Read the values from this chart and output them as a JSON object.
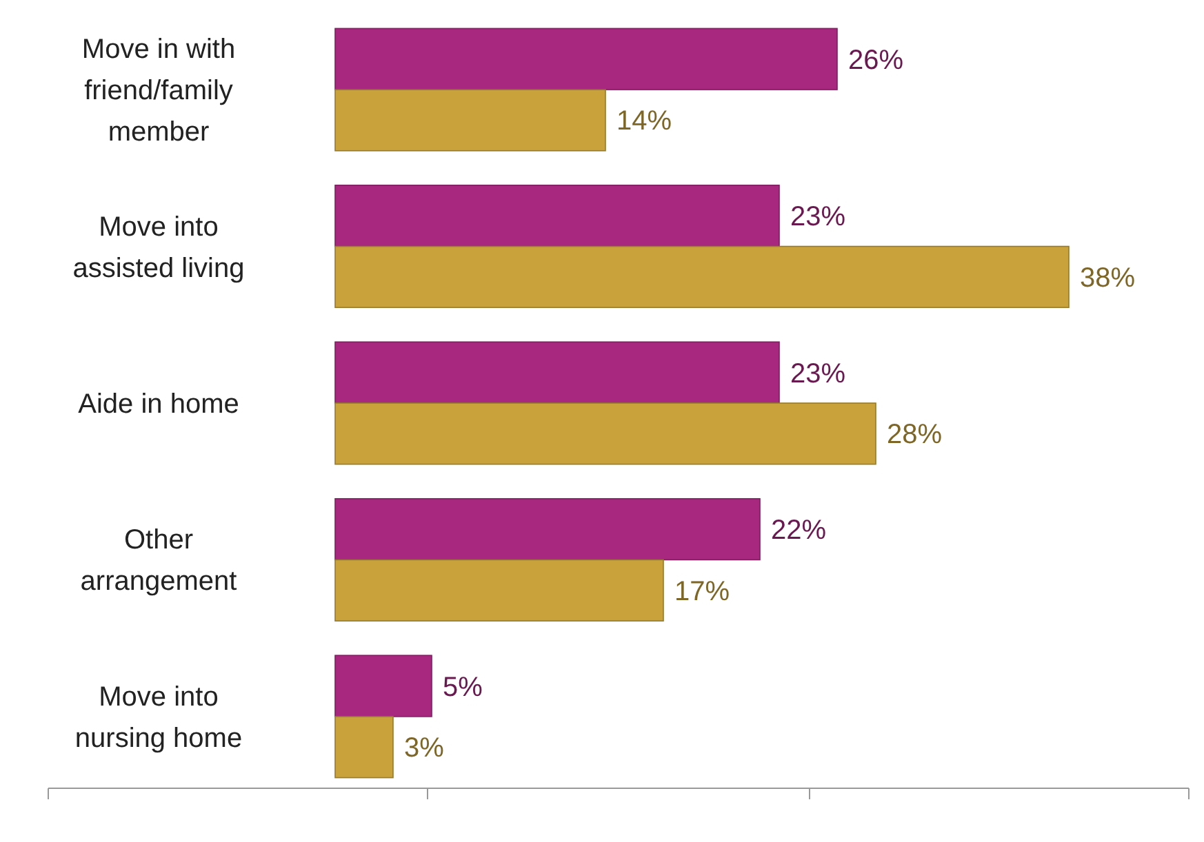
{
  "chart_data": {
    "type": "bar",
    "orientation": "horizontal",
    "categories": [
      "Move in with friend/family member",
      "Move into assisted living",
      "Aide in home",
      "Other arrangement",
      "Move into nursing home"
    ],
    "series": [
      {
        "color": "#a8287f",
        "values": [
          26,
          23,
          23,
          22,
          5
        ],
        "value_labels": [
          "26%",
          "23%",
          "23%",
          "22%",
          "5%"
        ]
      },
      {
        "color": "#c9a23c",
        "values": [
          14,
          38,
          28,
          17,
          3
        ],
        "value_labels": [
          "14%",
          "38%",
          "28%",
          "17%",
          "3%"
        ]
      }
    ],
    "tick_labels": "y"
  }
}
